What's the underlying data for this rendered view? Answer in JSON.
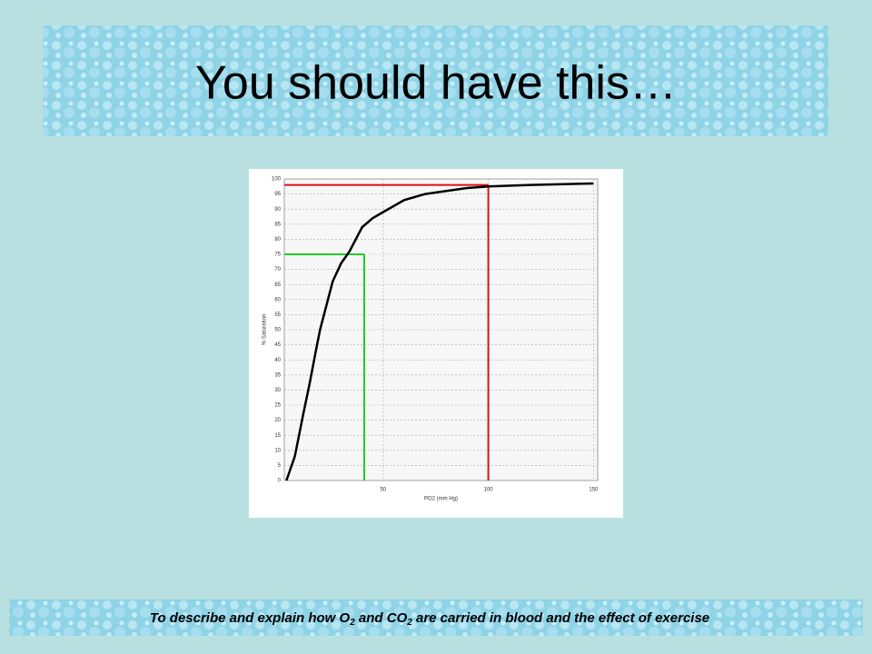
{
  "slide": {
    "title": "You should have this…",
    "footer": [
      "To describe and explain how O",
      "2",
      " and CO",
      "2",
      " are carried in blood and the effect of exercise"
    ]
  },
  "chart_data": {
    "type": "line",
    "x_label": "PO2 (mm Hg)",
    "y_label": "% Saturation",
    "x": [
      4,
      5,
      8,
      10,
      12,
      15,
      18,
      20,
      23,
      26,
      30,
      34,
      37,
      40,
      45,
      50,
      60,
      70,
      80,
      90,
      100,
      120,
      150
    ],
    "values": [
      0,
      2,
      8,
      15,
      22,
      32,
      43,
      50,
      58,
      66,
      72,
      76,
      80,
      84,
      87,
      89,
      93,
      95,
      96,
      97,
      97.5,
      98,
      98.5
    ],
    "color": "#000000",
    "xlim": [
      3,
      152
    ],
    "ylim": [
      0,
      100
    ],
    "xticks": [
      50,
      100,
      150
    ],
    "yticks": [
      0,
      5,
      10,
      15,
      20,
      25,
      30,
      35,
      40,
      45,
      50,
      55,
      60,
      65,
      70,
      75,
      80,
      85,
      90,
      95,
      100
    ],
    "grid": true,
    "markers": [
      {
        "x": 41,
        "y": 75,
        "color": "#22cc22"
      },
      {
        "x": 100,
        "y": 98,
        "color": "#dd1111"
      }
    ]
  }
}
